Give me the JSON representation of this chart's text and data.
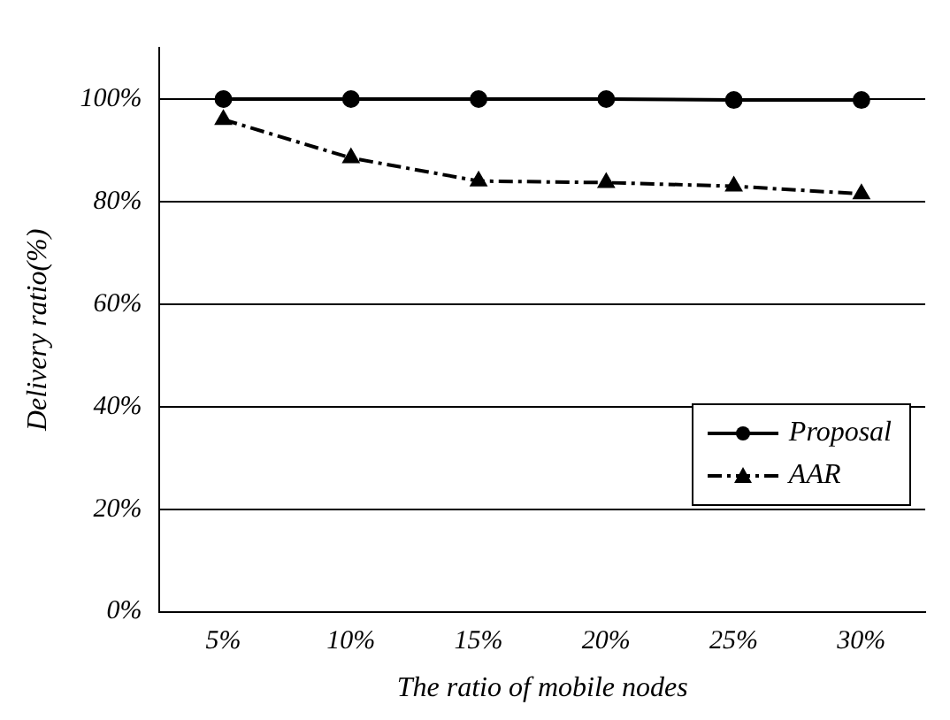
{
  "chart_data": {
    "type": "line",
    "xlabel": "The ratio of mobile nodes",
    "ylabel": "Delivery ratio(%)",
    "categories": [
      "5%",
      "10%",
      "15%",
      "20%",
      "25%",
      "30%"
    ],
    "series": [
      {
        "name": "Proposal",
        "color": "#000000",
        "marker": "circle",
        "line_style": "solid",
        "values": [
          100,
          100,
          100,
          100,
          99.8,
          99.8
        ]
      },
      {
        "name": "AAR",
        "color": "#000000",
        "marker": "triangle",
        "line_style": "dashed",
        "values": [
          96,
          88.5,
          84,
          83.7,
          83,
          81.5
        ]
      }
    ],
    "ylim": [
      0,
      110
    ],
    "yticks": [
      {
        "value": 0,
        "label": "0%"
      },
      {
        "value": 20,
        "label": "20%"
      },
      {
        "value": 40,
        "label": "40%"
      },
      {
        "value": 60,
        "label": "60%"
      },
      {
        "value": 80,
        "label": "80%"
      },
      {
        "value": 100,
        "label": "100%"
      }
    ],
    "grid": "y",
    "legend": "right"
  }
}
